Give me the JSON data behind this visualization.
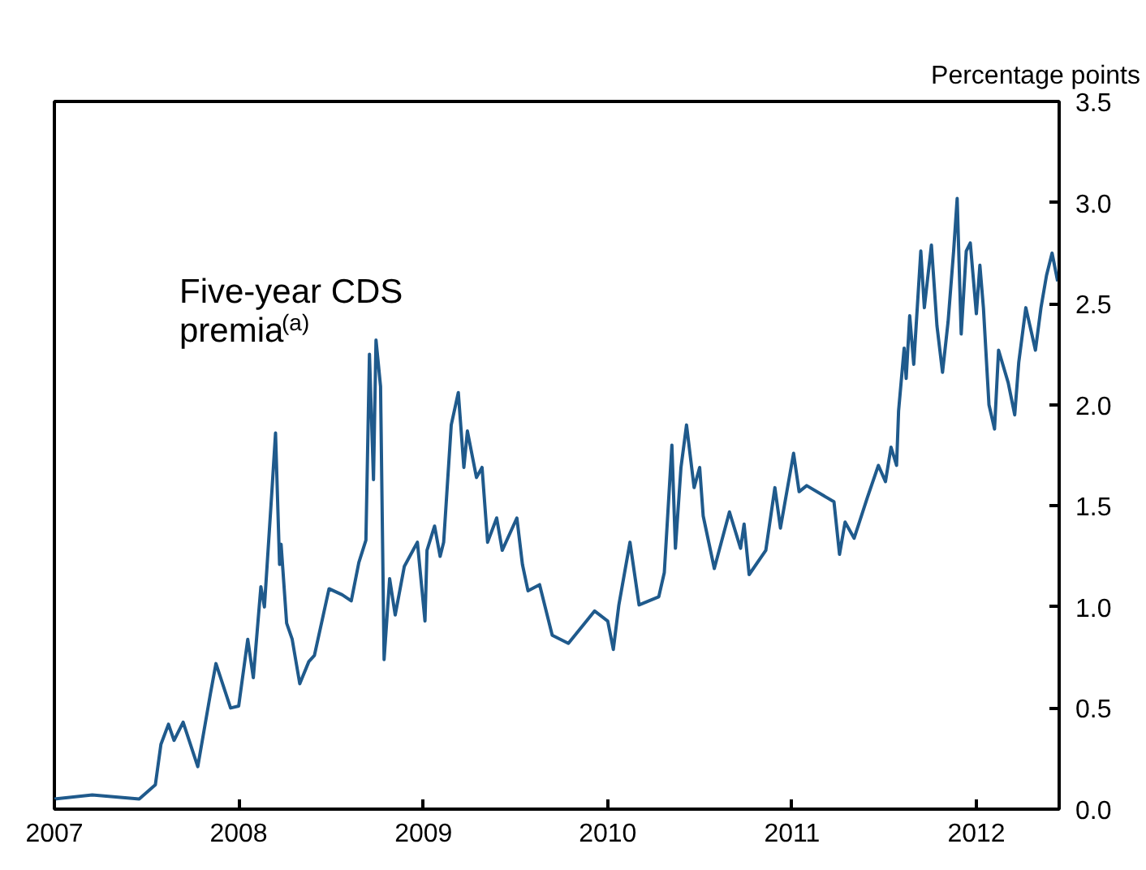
{
  "chart_data": {
    "type": "line",
    "ylabel": "Percentage points",
    "annotations": [
      "Five-year CDS\npremia$^{(a)}$"
    ],
    "xlim": [
      "2007-01-01",
      "2012-06-13"
    ],
    "xticks": [
      "2007",
      "2008",
      "2009",
      "2010",
      "2011",
      "2012"
    ],
    "ylim": [
      0,
      3.5
    ],
    "yticks": [
      {
        "value": 0,
        "label": "0.0"
      },
      {
        "value": 0.5,
        "label": "0.5"
      },
      {
        "value": 1,
        "label": "1.0"
      },
      {
        "value": 1.5,
        "label": "1.5"
      },
      {
        "value": 2,
        "label": "2.0"
      },
      {
        "value": 2.5,
        "label": "2.5"
      },
      {
        "value": 3,
        "label": "3.0"
      },
      {
        "value": 3.5,
        "label": "3.5"
      }
    ],
    "grid": false,
    "series": [
      {
        "color": "#1f5a8c",
        "x": [
          "2007-01-01",
          "2007-03-17",
          "2007-06-18",
          "2007-07-20",
          "2007-07-31",
          "2007-08-15",
          "2007-08-26",
          "2007-09-13",
          "2007-10-12",
          "2007-11-06",
          "2007-11-17",
          "2007-12-16",
          "2008-01-01",
          "2008-01-19",
          "2008-01-30",
          "2008-02-14",
          "2008-02-21",
          "2008-03-07",
          "2008-03-14",
          "2008-03-22",
          "2008-03-25",
          "2008-04-05",
          "2008-04-16",
          "2008-05-01",
          "2008-05-19",
          "2008-05-30",
          "2008-06-28",
          "2008-07-24",
          "2008-08-11",
          "2008-08-26",
          "2008-09-09",
          "2008-09-16",
          "2008-09-24",
          "2008-09-29",
          "2008-10-08",
          "2008-10-15",
          "2008-10-26",
          "2008-11-06",
          "2008-11-24",
          "2008-12-20",
          "2009-01-04",
          "2009-01-08",
          "2009-01-23",
          "2009-02-03",
          "2009-02-10",
          "2009-02-25",
          "2009-03-11",
          "2009-03-22",
          "2009-03-29",
          "2009-04-16",
          "2009-04-27",
          "2009-05-08",
          "2009-05-26",
          "2009-06-06",
          "2009-07-05",
          "2009-07-16",
          "2009-07-27",
          "2009-08-19",
          "2009-09-13",
          "2009-10-15",
          "2009-12-06",
          "2010-01-01",
          "2010-01-12",
          "2010-01-23",
          "2010-02-14",
          "2010-03-04",
          "2010-04-12",
          "2010-04-23",
          "2010-05-08",
          "2010-05-15",
          "2010-05-26",
          "2010-06-06",
          "2010-06-21",
          "2010-07-02",
          "2010-07-09",
          "2010-07-31",
          "2010-08-30",
          "2010-09-21",
          "2010-09-28",
          "2010-10-08",
          "2010-11-10",
          "2010-11-28",
          "2010-12-09",
          "2011-01-04",
          "2011-01-15",
          "2011-01-30",
          "2011-03-25",
          "2011-04-05",
          "2011-04-16",
          "2011-05-04",
          "2011-05-30",
          "2011-06-21",
          "2011-07-05",
          "2011-07-16",
          "2011-07-27",
          "2011-07-31",
          "2011-08-11",
          "2011-08-15",
          "2011-08-22",
          "2011-08-30",
          "2011-09-13",
          "2011-09-20",
          "2011-10-04",
          "2011-10-15",
          "2011-10-26",
          "2011-11-06",
          "2011-11-17",
          "2011-11-24",
          "2011-12-02",
          "2011-12-12",
          "2011-12-20",
          "2012-01-01",
          "2012-01-08",
          "2012-01-15",
          "2012-01-23",
          "2012-01-26",
          "2012-02-06",
          "2012-02-14",
          "2012-03-04",
          "2012-03-17",
          "2012-03-25",
          "2012-04-08",
          "2012-04-27",
          "2012-05-08",
          "2012-05-19",
          "2012-05-30",
          "2012-06-10"
        ],
        "values": [
          0.05,
          0.07,
          0.05,
          0.12,
          0.32,
          0.42,
          0.34,
          0.43,
          0.21,
          0.57,
          0.72,
          0.5,
          0.51,
          0.84,
          0.65,
          1.1,
          1.0,
          1.58,
          1.86,
          1.21,
          1.31,
          0.92,
          0.84,
          0.62,
          0.73,
          0.76,
          1.09,
          1.06,
          1.03,
          1.22,
          1.33,
          2.25,
          1.63,
          2.32,
          2.09,
          0.74,
          1.14,
          0.96,
          1.2,
          1.32,
          0.93,
          1.28,
          1.4,
          1.25,
          1.32,
          1.9,
          2.06,
          1.69,
          1.87,
          1.64,
          1.69,
          1.32,
          1.44,
          1.28,
          1.44,
          1.21,
          1.08,
          1.11,
          0.86,
          0.82,
          0.98,
          0.93,
          0.79,
          1.01,
          1.32,
          1.01,
          1.05,
          1.17,
          1.8,
          1.29,
          1.69,
          1.9,
          1.59,
          1.69,
          1.45,
          1.19,
          1.47,
          1.29,
          1.41,
          1.16,
          1.28,
          1.59,
          1.39,
          1.76,
          1.57,
          1.6,
          1.52,
          1.26,
          1.42,
          1.34,
          1.54,
          1.7,
          1.62,
          1.79,
          1.7,
          1.97,
          2.28,
          2.13,
          2.44,
          2.2,
          2.76,
          2.48,
          2.79,
          2.39,
          2.16,
          2.41,
          2.76,
          3.02,
          2.35,
          2.76,
          2.8,
          2.45,
          2.69,
          2.48,
          2.13,
          2.0,
          1.88,
          2.27,
          2.11,
          1.95,
          2.21,
          2.48,
          2.27,
          2.48,
          2.64,
          2.75,
          2.61
        ]
      }
    ]
  }
}
